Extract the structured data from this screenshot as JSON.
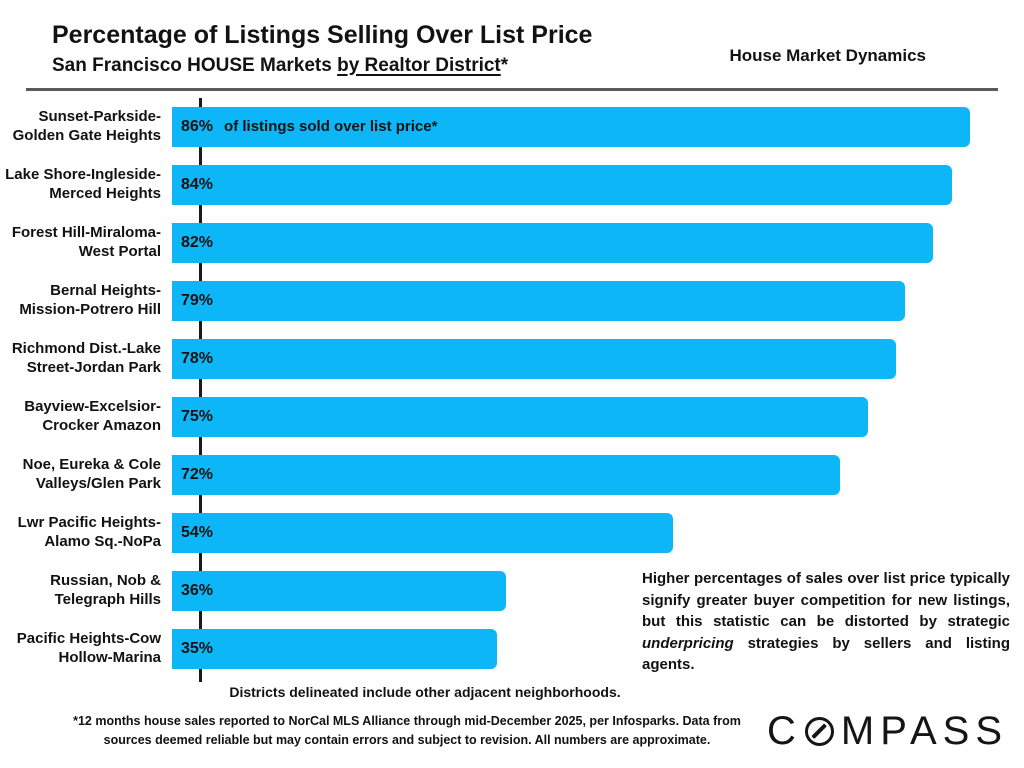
{
  "header": {
    "title": "Percentage of Listings Selling Over List Price",
    "subtitle_prefix": "San Francisco HOUSE Markets ",
    "subtitle_underlined": "by Realtor District",
    "subtitle_suffix": "*",
    "right_label": "House Market Dynamics"
  },
  "chart_data": {
    "type": "bar",
    "orientation": "horizontal",
    "title": "Percentage of Listings Selling Over List Price",
    "subtitle": "San Francisco HOUSE Markets by Realtor District*",
    "categories": [
      "Sunset-Parkside-\nGolden Gate Heights",
      "Lake Shore-Ingleside-\nMerced Heights",
      "Forest Hill-Miraloma-\nWest Portal",
      "Bernal Heights-\nMission-Potrero Hill",
      "Richmond Dist.-Lake\nStreet-Jordan Park",
      "Bayview-Excelsior-\nCrocker Amazon",
      "Noe, Eureka & Cole\nValleys/Glen Park",
      "Lwr Pacific Heights-\nAlamo Sq.-NoPa",
      "Russian, Nob &\nTelegraph Hills",
      "Pacific Heights-Cow\nHollow-Marina"
    ],
    "values": [
      86,
      84,
      82,
      79,
      78,
      75,
      72,
      54,
      36,
      35
    ],
    "value_suffix": "%",
    "first_bar_annotation": "of listings sold over list price*",
    "xlim": [
      0,
      86.5
    ],
    "bar_color": "#0db6f7",
    "grid": false,
    "legend": false
  },
  "annotation": {
    "part1": "Higher percentages of sales over list price typically signify greater buyer competition for new listings, but this statistic can be distorted by strategic ",
    "italic_word": "underpricing",
    "part2": " strategies by sellers and listing agents."
  },
  "chart_caption": "Districts delineated include other adjacent neighborhoods.",
  "footnote": "*12 months house sales reported to NorCal MLS Alliance through mid-December 2025, per Infosparks. Data from sources deemed reliable but may contain errors and subject to revision. All numbers are approximate.",
  "logo": {
    "prefix": "C",
    "suffix": "MPASS"
  }
}
